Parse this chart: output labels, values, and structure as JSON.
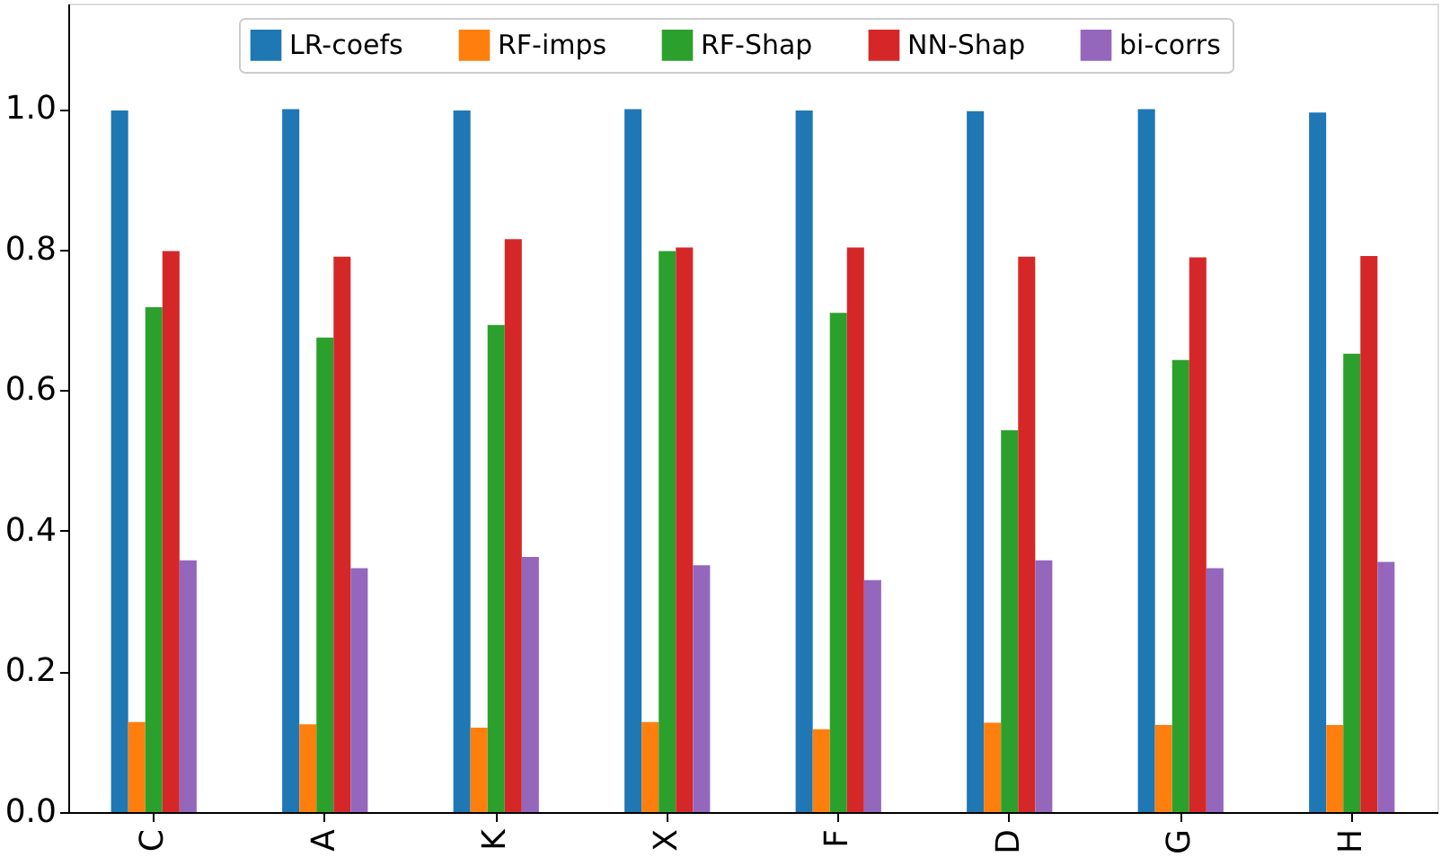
{
  "chart_data": {
    "type": "bar",
    "categories": [
      "C",
      "A",
      "K",
      "X",
      "F",
      "D",
      "G",
      "H"
    ],
    "series": [
      {
        "name": "LR-coefs",
        "color": "#1f77b4",
        "values": [
          0.998,
          1.0,
          0.998,
          1.0,
          0.998,
          0.997,
          1.0,
          0.995
        ]
      },
      {
        "name": "RF-imps",
        "color": "#ff7f0e",
        "values": [
          0.128,
          0.125,
          0.12,
          0.128,
          0.118,
          0.127,
          0.124,
          0.124
        ]
      },
      {
        "name": "RF-Shap",
        "color": "#2ca02c",
        "values": [
          0.718,
          0.675,
          0.693,
          0.798,
          0.71,
          0.543,
          0.643,
          0.652
        ]
      },
      {
        "name": "NN-Shap",
        "color": "#d62728",
        "values": [
          0.798,
          0.79,
          0.815,
          0.803,
          0.803,
          0.79,
          0.789,
          0.791
        ]
      },
      {
        "name": "bi-corrs",
        "color": "#9467bd",
        "values": [
          0.358,
          0.347,
          0.363,
          0.351,
          0.33,
          0.358,
          0.347,
          0.356
        ]
      }
    ],
    "ylim": [
      0,
      1.15
    ],
    "yticks": [
      {
        "value": 0,
        "label": "0.0"
      },
      {
        "value": 0.2,
        "label": "0.2"
      },
      {
        "value": 0.4,
        "label": "0.4"
      },
      {
        "value": 0.6,
        "label": "0.6"
      },
      {
        "value": 0.8,
        "label": "0.8"
      },
      {
        "value": 1.0,
        "label": "1.0"
      }
    ],
    "grid": false,
    "legend": "top"
  }
}
